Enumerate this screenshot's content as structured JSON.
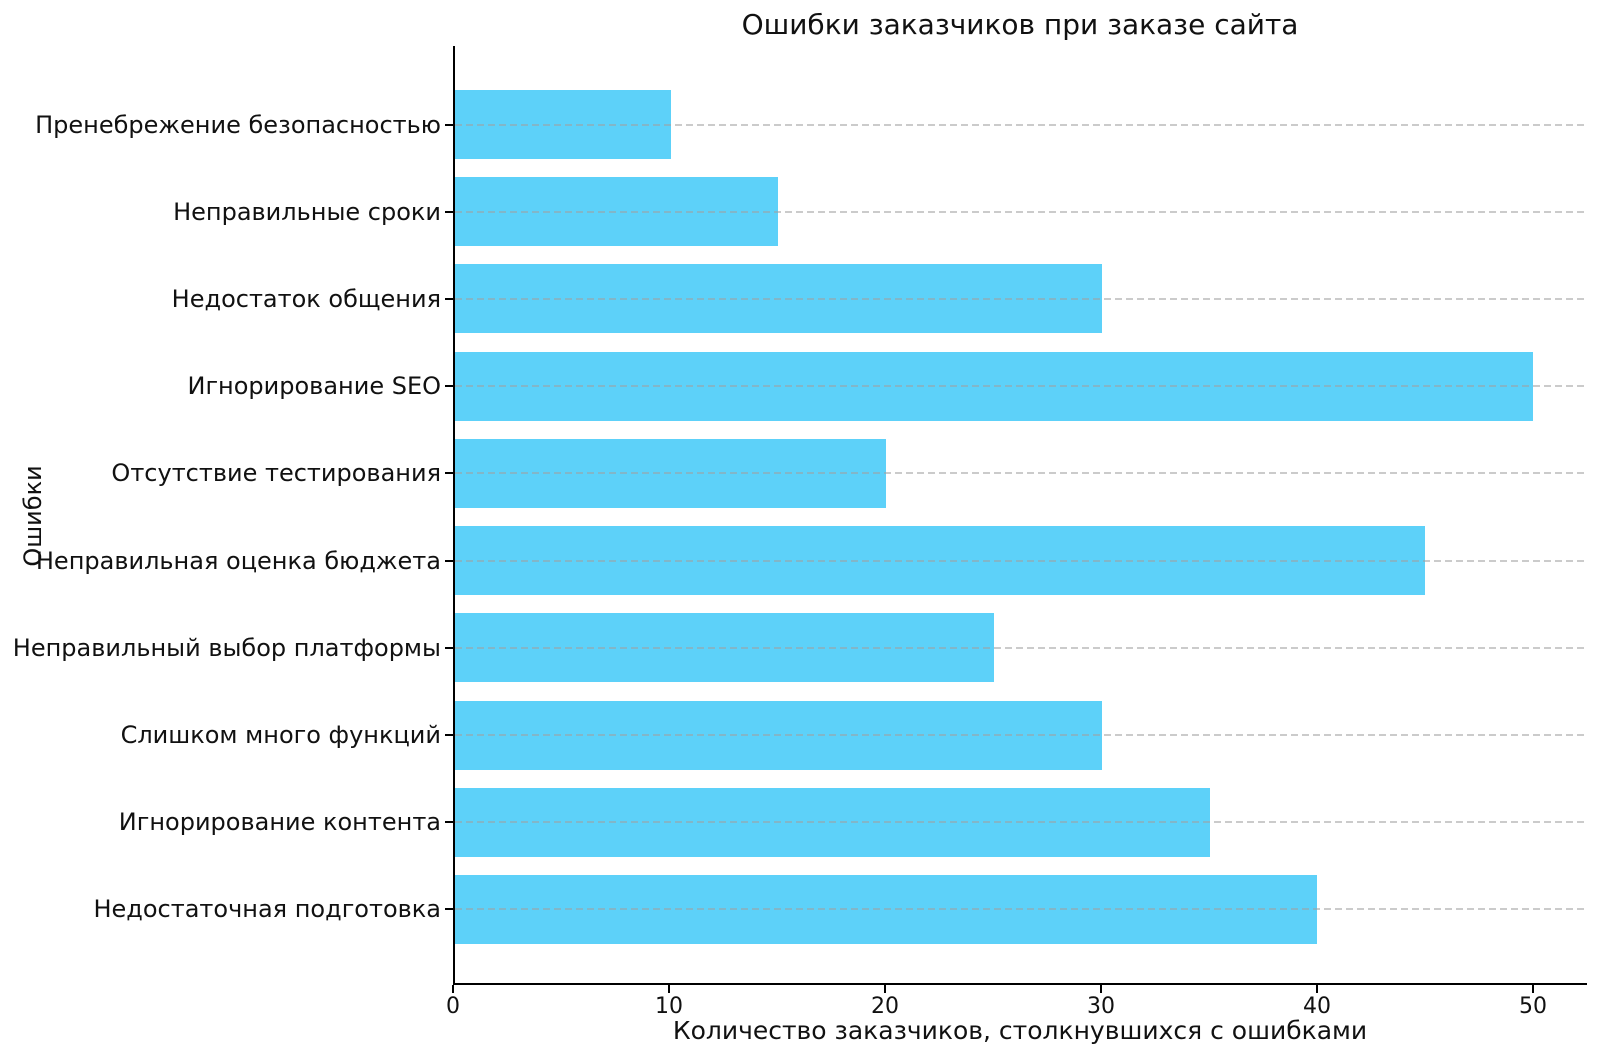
{
  "chart_data": {
    "type": "bar",
    "orientation": "horizontal",
    "title": "Ошибки заказчиков при заказе сайта",
    "xlabel": "Количество заказчиков, столкнувшихся с ошибками",
    "ylabel": "Ошибки",
    "categories": [
      "Пренебрежение безопасностью",
      "Неправильные сроки",
      "Недостаток общения",
      "Игнорирование SEO",
      "Отсутствие тестирования",
      "Неправильная оценка бюджета",
      "Неправильный выбор платформы",
      "Слишком много функций",
      "Игнорирование контента",
      "Недостаточная подготовка"
    ],
    "values": [
      10,
      15,
      30,
      50,
      20,
      45,
      25,
      30,
      35,
      40
    ],
    "xticks": [
      0,
      10,
      20,
      30,
      40,
      50
    ],
    "xlim": [
      0,
      52.5
    ],
    "grid": {
      "axis": "y",
      "style": "dashed",
      "drawn_above_bars": true
    },
    "legend": "none",
    "colors": {
      "bar": "#5dd1f9",
      "grid": "rgba(160,160,160,0.55)",
      "spine": "#000000",
      "text": "#111111",
      "background": "#ffffff"
    }
  }
}
